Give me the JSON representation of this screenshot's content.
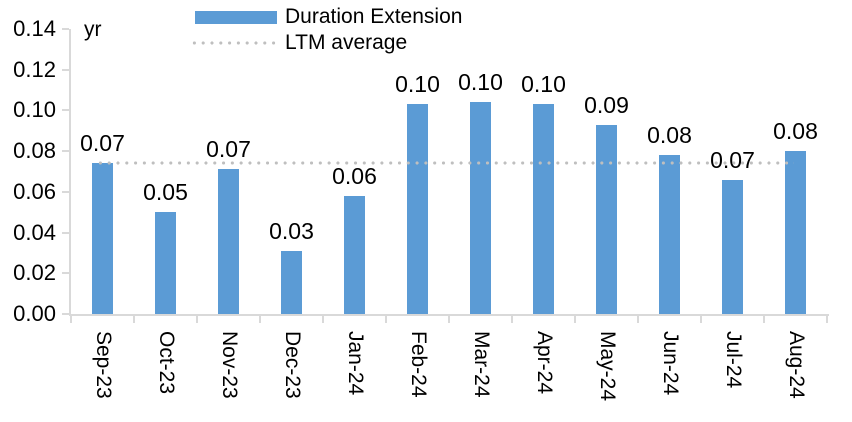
{
  "chart_data": {
    "type": "bar",
    "unit_label": "yr",
    "categories": [
      "Sep-23",
      "Oct-23",
      "Nov-23",
      "Dec-23",
      "Jan-24",
      "Feb-24",
      "Mar-24",
      "Apr-24",
      "May-24",
      "Jun-24",
      "Jul-24",
      "Aug-24"
    ],
    "series": [
      {
        "name": "Duration Extension",
        "color": "#5b9bd5",
        "values": [
          0.074,
          0.05,
          0.071,
          0.031,
          0.058,
          0.103,
          0.104,
          0.103,
          0.093,
          0.078,
          0.066,
          0.08
        ],
        "data_labels": [
          "0.07",
          "0.05",
          "0.07",
          "0.03",
          "0.06",
          "0.10",
          "0.10",
          "0.10",
          "0.09",
          "0.08",
          "0.07",
          "0.08"
        ]
      }
    ],
    "reference_line": {
      "name": "LTM average",
      "value": 0.074,
      "color": "#bfbfbf",
      "style": "dotted"
    },
    "y_axis": {
      "min": 0.0,
      "max": 0.14,
      "step": 0.02,
      "tick_labels": [
        "0.00",
        "0.02",
        "0.04",
        "0.06",
        "0.08",
        "0.10",
        "0.12",
        "0.14"
      ]
    },
    "axis_color": "#d9d9d9",
    "text_color": "#000000",
    "background_color": "#ffffff",
    "legend_position": "top",
    "grid": false
  }
}
